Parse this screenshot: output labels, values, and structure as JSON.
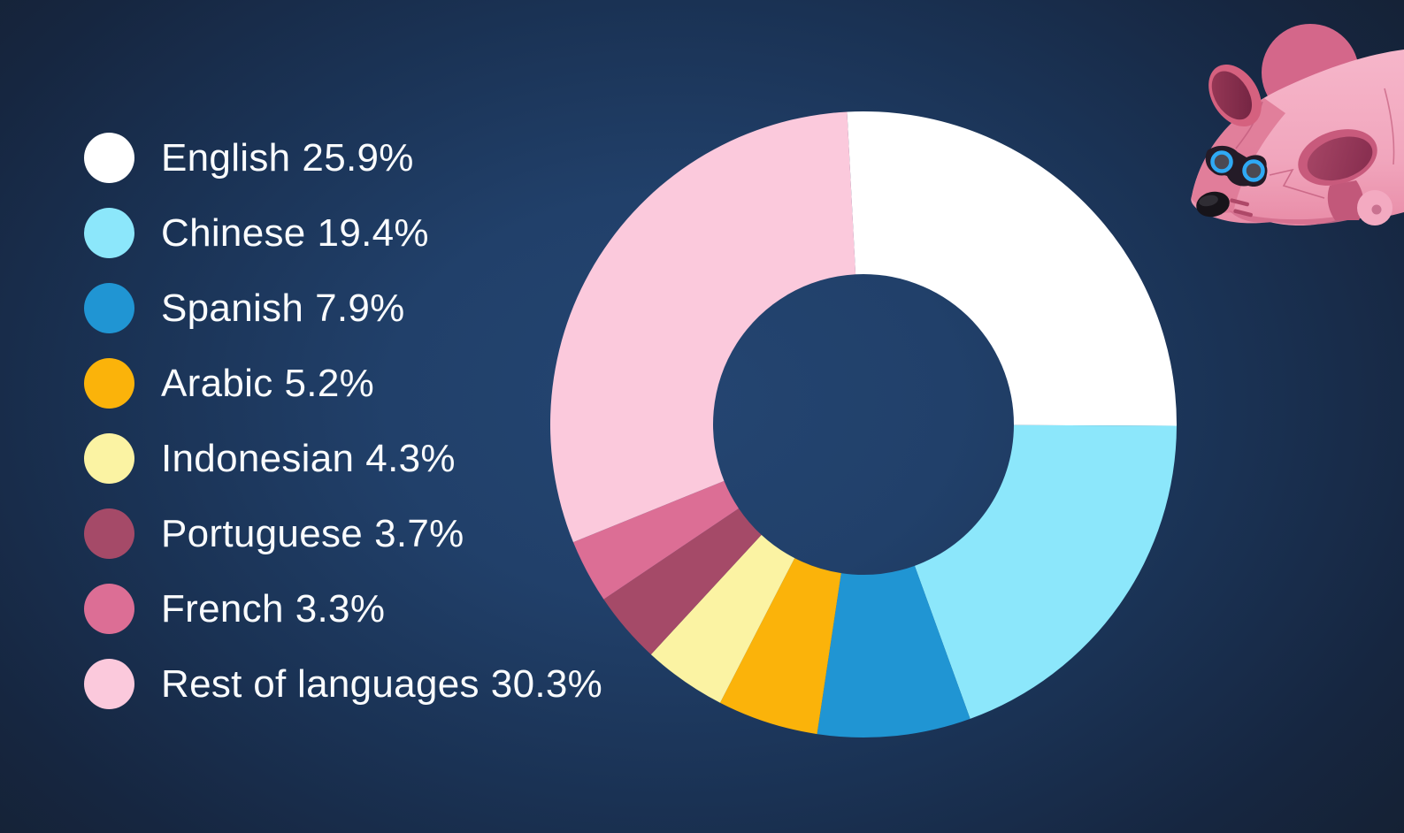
{
  "chart_data": {
    "type": "pie",
    "subtype": "donut",
    "title": "",
    "unit": "%",
    "legend_position": "left",
    "start_angle_deg": -3,
    "direction": "clockwise",
    "inner_radius_ratio": 0.48,
    "entries": [
      {
        "label": "English",
        "value": 25.9,
        "color": "#ffffff"
      },
      {
        "label": "Chinese",
        "value": 19.4,
        "color": "#8ce7fb"
      },
      {
        "label": "Spanish",
        "value": 7.9,
        "color": "#2095d3"
      },
      {
        "label": "Arabic",
        "value": 5.2,
        "color": "#fbb30a"
      },
      {
        "label": "Indonesian",
        "value": 4.3,
        "color": "#fbf3a3"
      },
      {
        "label": "Portuguese",
        "value": 3.7,
        "color": "#a54a68"
      },
      {
        "label": "French",
        "value": 3.3,
        "color": "#dc6e95"
      },
      {
        "label": "Rest of languages",
        "value": 30.3,
        "color": "#fbc9dc"
      }
    ],
    "background_center_color": "#234471",
    "background_edge_color": "#141f2f",
    "legend_text_color": "#fafcfe"
  },
  "mascot": {
    "name": "robot mouse",
    "body_color": "#f3abc1",
    "goggle_ring_color": "#2fa9f4"
  }
}
